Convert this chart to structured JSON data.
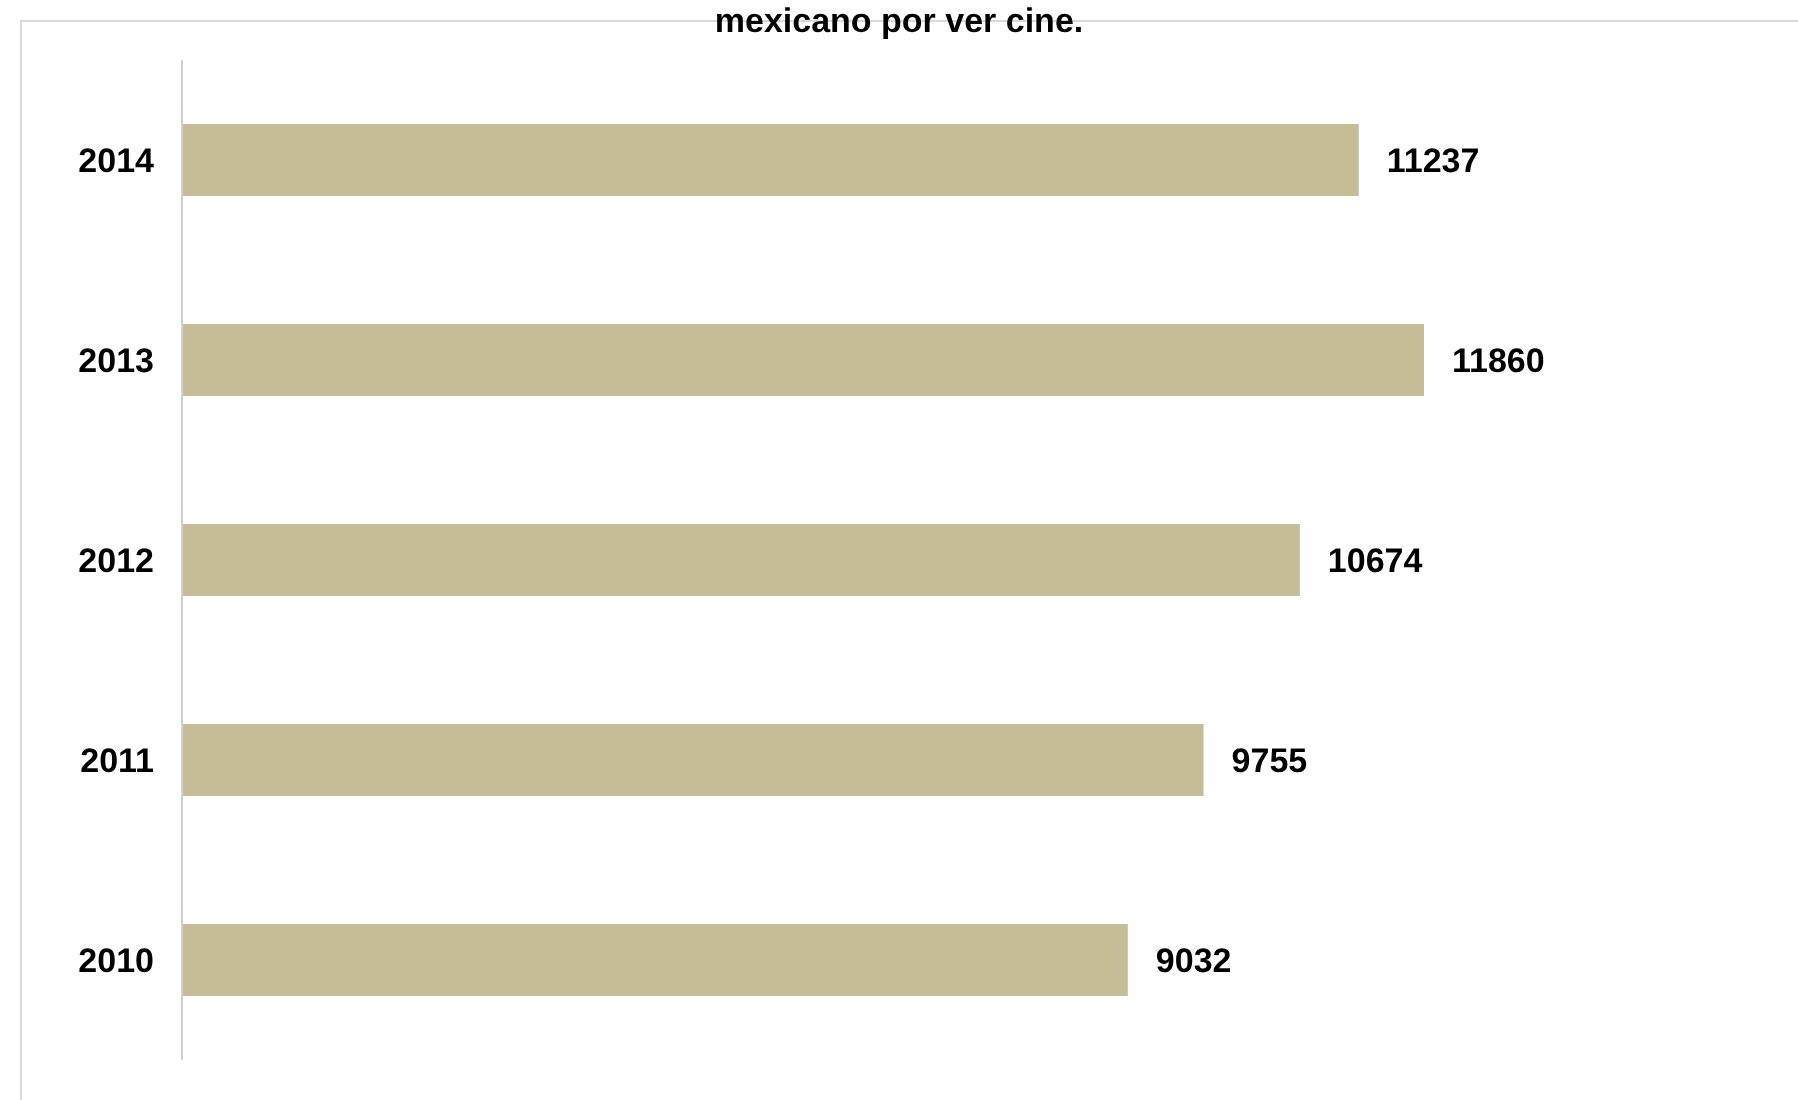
{
  "chart_data": {
    "type": "bar",
    "orientation": "horizontal",
    "title": "mexicano por ver cine.",
    "categories": [
      "2014",
      "2013",
      "2012",
      "2011",
      "2010"
    ],
    "values": [
      11237,
      11860,
      10674,
      9755,
      9032
    ],
    "color": "#c6bc98",
    "data_labels": true
  }
}
